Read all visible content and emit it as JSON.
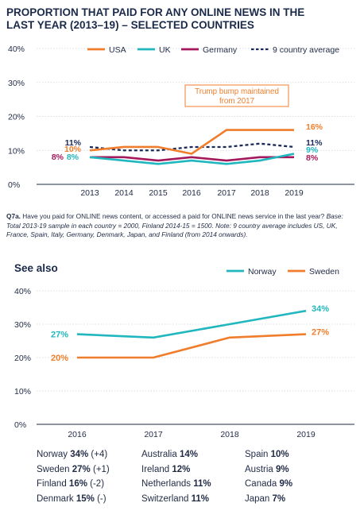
{
  "title_lines": [
    "PROPORTION THAT PAID FOR ANY ONLINE NEWS IN THE",
    "LAST YEAR (2013–19) – SELECTED COUNTRIES"
  ],
  "note": {
    "q_label": "Q7a.",
    "question": " Have you paid for ONLINE news content, or accessed a paid for ONLINE news service in the last year?",
    "base": " Base: Total 2013-19 sample in each country = 2000, Finland 2014-15 = 1500. Note: 9 country average includes US, UK, France, Spain, Italy, Germany, Denmark, Japan, and Finland (from 2014 onwards)."
  },
  "see_also": "See also",
  "annotation": "Trump bump maintained from 2017",
  "colors": {
    "usa": "#f07d2b",
    "uk": "#21b7be",
    "germany": "#a3195b",
    "avg": "#1b2a5a",
    "norway": "#21b7be",
    "sweden": "#f07d2b",
    "grid": "#cfd3da",
    "axis": "#1f2a44"
  },
  "chart_data": [
    {
      "type": "line",
      "x": [
        "2013",
        "2014",
        "2015",
        "2016",
        "2017",
        "2018",
        "2019"
      ],
      "ylim": [
        0,
        40
      ],
      "yticks": [
        "0%",
        "10%",
        "20%",
        "30%",
        "40%"
      ],
      "legend_position": "top",
      "series": [
        {
          "name": "USA",
          "key": "usa",
          "style": "solid",
          "values": [
            10,
            11,
            11,
            9,
            16,
            16,
            16
          ]
        },
        {
          "name": "UK",
          "key": "uk",
          "style": "solid",
          "values": [
            8,
            7,
            6,
            7,
            6,
            7,
            9
          ]
        },
        {
          "name": "Germany",
          "key": "germany",
          "style": "solid",
          "values": [
            8,
            8,
            7,
            8,
            7,
            8,
            8
          ]
        },
        {
          "name": "9 country average",
          "key": "avg",
          "style": "dashed",
          "values": [
            11,
            10,
            10,
            11,
            11,
            12,
            11
          ]
        }
      ],
      "start_labels": [
        {
          "key": "avg",
          "text": "11%"
        },
        {
          "key": "usa",
          "text": "10%"
        },
        {
          "key": "germany",
          "text": "8%"
        },
        {
          "key": "uk",
          "text": "8%"
        }
      ],
      "end_labels": [
        {
          "key": "usa",
          "text": "16%"
        },
        {
          "key": "avg",
          "text": "11%"
        },
        {
          "key": "uk",
          "text": "9%"
        },
        {
          "key": "germany",
          "text": "8%"
        }
      ]
    },
    {
      "type": "line",
      "x": [
        "2016",
        "2017",
        "2018",
        "2019"
      ],
      "ylim": [
        0,
        40
      ],
      "yticks": [
        "0%",
        "10%",
        "20%",
        "30%",
        "40%"
      ],
      "legend_position": "top-right",
      "series": [
        {
          "name": "Norway",
          "key": "norway",
          "style": "solid",
          "values": [
            27,
            26,
            30,
            34
          ]
        },
        {
          "name": "Sweden",
          "key": "sweden",
          "style": "solid",
          "values": [
            20,
            20,
            26,
            27
          ]
        }
      ],
      "start_labels": [
        {
          "key": "norway",
          "text": "27%"
        },
        {
          "key": "sweden",
          "text": "20%"
        }
      ],
      "end_labels": [
        {
          "key": "norway",
          "text": "34%"
        },
        {
          "key": "sweden",
          "text": "27%"
        }
      ]
    }
  ],
  "other_countries": [
    [
      {
        "name": "Norway ",
        "value": "34%",
        "change": " (+4)"
      },
      {
        "name": "Australia ",
        "value": "14%",
        "change": ""
      },
      {
        "name": "Spain ",
        "value": "10%",
        "change": ""
      }
    ],
    [
      {
        "name": "Sweden ",
        "value": "27%",
        "change": " (+1)"
      },
      {
        "name": "Ireland ",
        "value": "12%",
        "change": ""
      },
      {
        "name": "Austria ",
        "value": "9%",
        "change": ""
      }
    ],
    [
      {
        "name": "Finland ",
        "value": "16%",
        "change": " (-2)"
      },
      {
        "name": "Netherlands ",
        "value": "11%",
        "change": ""
      },
      {
        "name": "Canada ",
        "value": "9%",
        "change": ""
      }
    ],
    [
      {
        "name": "Denmark ",
        "value": "15%",
        "change": " (-)"
      },
      {
        "name": "Switzerland ",
        "value": "11%",
        "change": ""
      },
      {
        "name": "Japan ",
        "value": "7%",
        "change": ""
      }
    ]
  ]
}
